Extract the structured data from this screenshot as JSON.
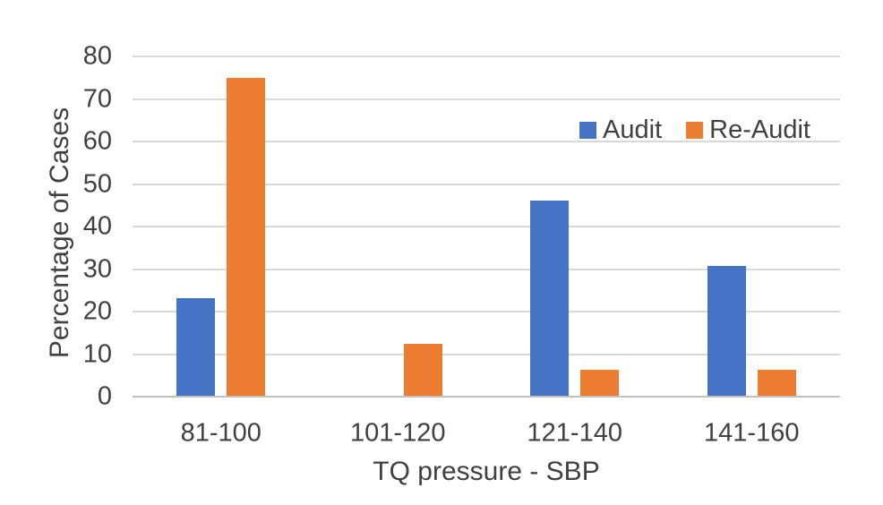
{
  "chart_data": {
    "type": "bar",
    "title": "",
    "categories": [
      "81-100",
      "101-120",
      "121-140",
      "141-160"
    ],
    "series": [
      {
        "name": "Audit",
        "color": "#4472C4",
        "values": [
          23.1,
          0,
          46.2,
          30.8
        ]
      },
      {
        "name": "Re-Audit",
        "color": "#ED7D31",
        "values": [
          75,
          12.5,
          6.25,
          6.25
        ]
      }
    ],
    "xlabel": "TQ pressure - SBP",
    "ylabel": "Percentage of Cases",
    "ylim": [
      0,
      80
    ],
    "ytick_step": 10,
    "grid": true,
    "legend_position": "inside-top-right",
    "colors": {
      "text": "#404040",
      "gridline": "#D9D9D9",
      "axis_line": "#C0C0C0",
      "background": "#FFFFFF"
    }
  }
}
